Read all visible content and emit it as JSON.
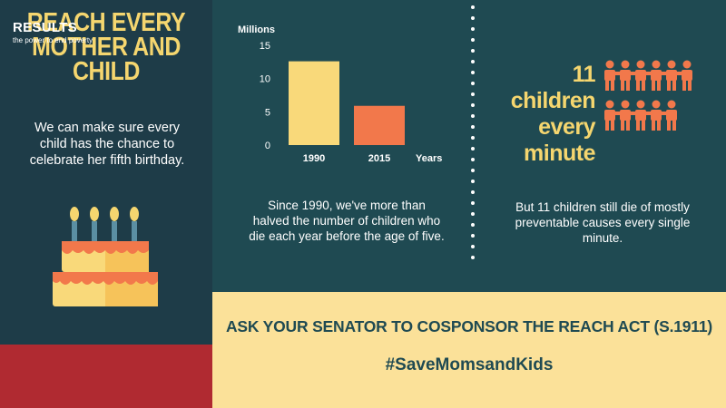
{
  "left": {
    "title_lines": [
      "REACH EVERY",
      "MOTHER AND",
      "CHILD"
    ],
    "body_lines": [
      "We can make sure every",
      "child has the chance to",
      "celebrate her fifth birthday."
    ]
  },
  "cake_icon": "birthday-cake-icon",
  "results": {
    "logo": "RESULTS",
    "tagline": "the power to end poverty"
  },
  "chart_data": {
    "type": "bar",
    "categories": [
      "1990",
      "2015"
    ],
    "values": [
      12.6,
      5.9
    ],
    "ylabel": "Millions",
    "xlabel": "Years",
    "ylim": [
      0,
      15
    ],
    "yticks": [
      0,
      5,
      10,
      15
    ],
    "colors": [
      "#f9d97a",
      "#f2784b"
    ]
  },
  "middle": {
    "caption_lines": [
      "Since 1990, we've more than",
      "halved the number of children who",
      "die each year before the age of five."
    ]
  },
  "right": {
    "stat_lines": [
      "11 children",
      "every",
      "minute"
    ],
    "people_count": 11,
    "people_icon": "child-figure-icon",
    "caption_lines": [
      "But 11 children still die of mostly",
      "preventable causes every single",
      "minute."
    ]
  },
  "bottom": {
    "cta": "ASK YOUR SENATOR TO COSPONSOR THE REACH ACT (S.1911)",
    "hashtag": "#SaveMomsandKids"
  },
  "colors": {
    "dark_teal": "#1e3c48",
    "teal": "#1f4a52",
    "yellow": "#f5d66f",
    "orange": "#f2784b",
    "cream": "#fbe199",
    "red": "#b02a31"
  }
}
